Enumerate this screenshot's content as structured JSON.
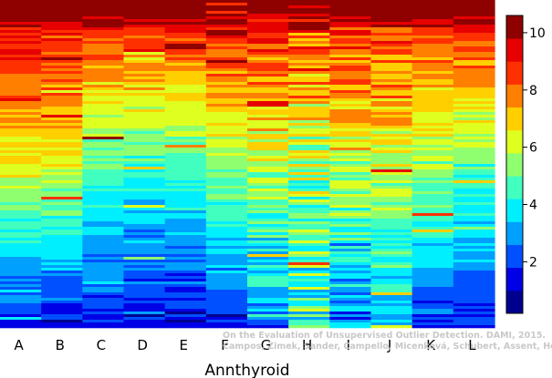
{
  "chart_data": {
    "type": "heatmap",
    "title": "",
    "xlabel": "Annthyroid",
    "columns": [
      "A",
      "B",
      "C",
      "D",
      "E",
      "F",
      "G",
      "H",
      "I",
      "J",
      "K",
      "L"
    ],
    "column_profile": {
      "description_of_values": "typical value at top, middle and bottom of each column (rows ranked by outlier score)",
      "top": [
        9.8,
        9.6,
        9.5,
        9.7,
        9.7,
        9.5,
        9.6,
        9.0,
        9.3,
        9.2,
        9.0,
        9.4
      ],
      "middle": [
        6.5,
        6.3,
        4.8,
        4.5,
        4.6,
        5.5,
        5.8,
        5.5,
        6.0,
        6.0,
        5.5,
        5.0
      ],
      "bottom": [
        1.2,
        1.3,
        1.5,
        1.2,
        1.3,
        1.6,
        2.5,
        4.5,
        2.5,
        3.0,
        1.8,
        1.5
      ]
    },
    "colorbar": {
      "min": 0.2,
      "max": 10.6,
      "ticks": [
        "2",
        "4",
        "6",
        "8",
        "10"
      ],
      "tick_values": [
        2,
        4,
        6,
        8,
        10
      ],
      "colors": [
        "#00008F",
        "#0000E6",
        "#0050FF",
        "#00A0FF",
        "#00EFFF",
        "#40FFBF",
        "#8FFF70",
        "#DFFF20",
        "#FFCF00",
        "#FF7F00",
        "#FF3000",
        "#E60000",
        "#8F0000"
      ]
    }
  },
  "credit": {
    "line1": "On the Evaluation of Unsupervised Outlier Detection. DAMI, 2015.",
    "line2": "Campos, Zimek, Sander, Campello, Micenková, Schubert, Assent, Houle"
  }
}
